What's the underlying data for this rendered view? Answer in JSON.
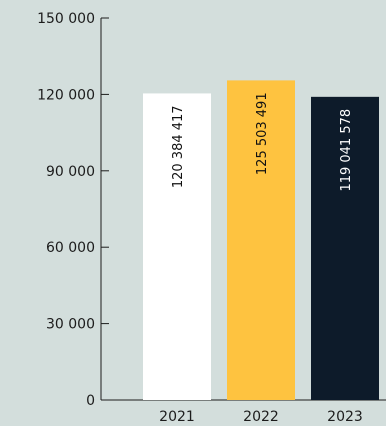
{
  "chart_data": {
    "type": "bar",
    "title": "",
    "xlabel": "",
    "ylabel": "",
    "categories": [
      "2021",
      "2022",
      "2023"
    ],
    "values": [
      120384417,
      125503491,
      119041578
    ],
    "value_labels": [
      "120 384 417",
      "125 503 491",
      "119 041 578"
    ],
    "bar_colors": [
      "#ffffff",
      "#fec340",
      "#0d1b2a"
    ],
    "bar_label_colors": [
      "#111111",
      "#111111",
      "#ffffff"
    ],
    "y_ticks": [
      0,
      30000,
      60000,
      90000,
      120000,
      150000
    ],
    "y_tick_labels": [
      "0",
      "30 000",
      "60 000",
      "90 000",
      "120 000",
      "150 000"
    ],
    "ylim": [
      0,
      150000
    ],
    "scale_note": "bar values are displayed against the axis in thousands",
    "grid": false,
    "colors": {
      "background": "#d3dedc",
      "axis": "#1c1c1c",
      "text": "#1c1c1c"
    }
  }
}
